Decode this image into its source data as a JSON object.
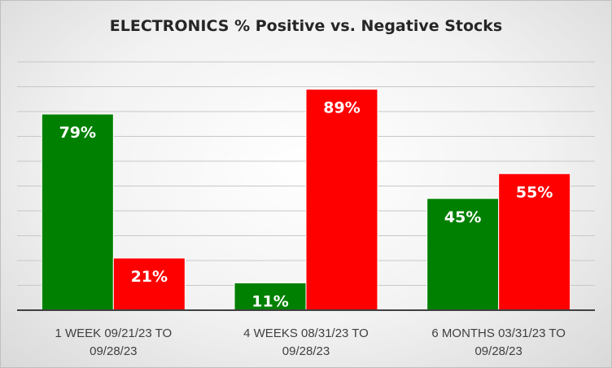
{
  "chart_data": {
    "type": "bar",
    "title": "ELECTRONICS % Positive vs. Negative Stocks",
    "categories": [
      [
        "1 WEEK 09/21/23 TO",
        "09/28/23"
      ],
      [
        "4 WEEKS 08/31/23 TO",
        "09/28/23"
      ],
      [
        "6 MONTHS 03/31/23 TO",
        "09/28/23"
      ]
    ],
    "series": [
      {
        "values": [
          79,
          11,
          45
        ],
        "labels": [
          "79%",
          "11%",
          "45%"
        ],
        "color": "#008000"
      },
      {
        "values": [
          21,
          89,
          55
        ],
        "labels": [
          "21%",
          "89%",
          "55%"
        ],
        "color": "#ff0000"
      }
    ],
    "ylim": [
      0,
      100
    ],
    "grid": true,
    "legend": "none"
  }
}
